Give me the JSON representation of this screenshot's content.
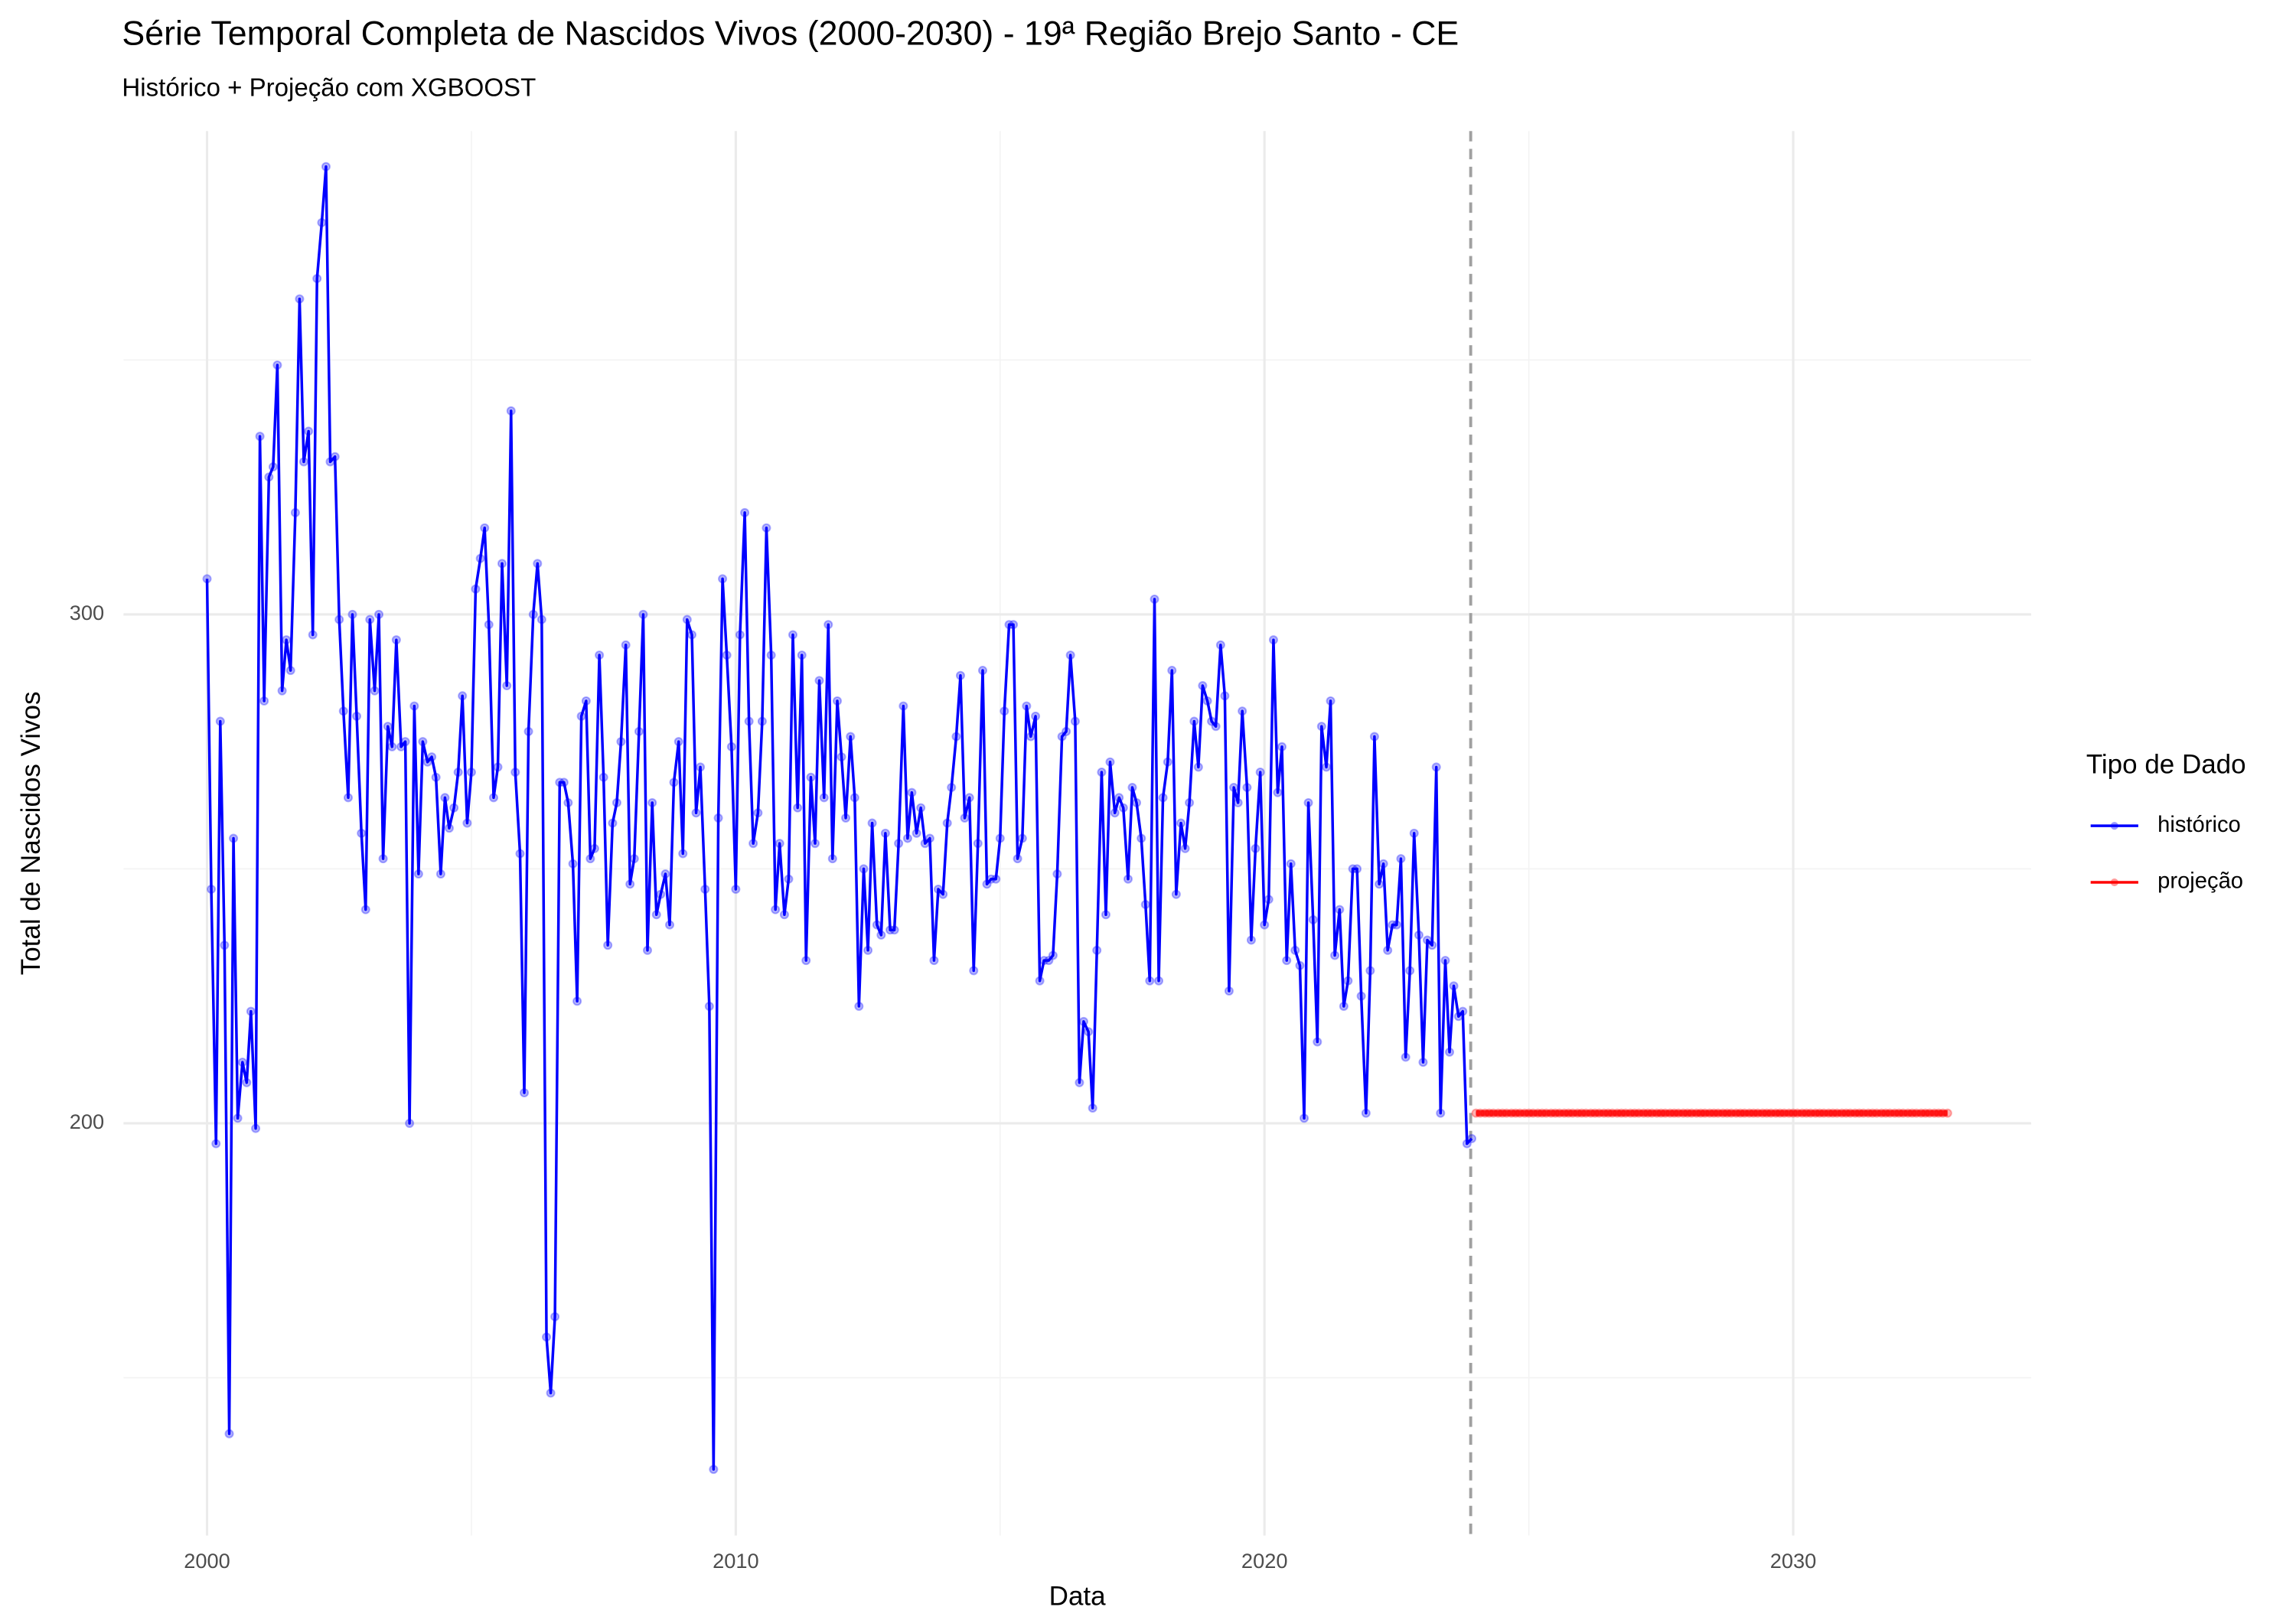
{
  "chart_data": {
    "type": "line",
    "title": "Série Temporal Completa de Nascidos Vivos (2000-2030) -  19ª Região Brejo Santo - CE",
    "subtitle": "Histórico + Projeção com XGBOOST",
    "x_label": "Data",
    "y_label": "Total de Nascidos Vivos",
    "legend_title": "Tipo de Dado",
    "legend_position": "right",
    "grid": true,
    "xlim": [
      1998.42,
      2034.5
    ],
    "xticks": [
      2000,
      2010,
      2020,
      2030
    ],
    "x_minor_ticks": [
      2005,
      2015,
      2025
    ],
    "ylim": [
      119,
      395
    ],
    "yticks": [
      200,
      300
    ],
    "y_minor_ticks": [
      150,
      250,
      350
    ],
    "reference_line_x": 2023.9,
    "series": [
      {
        "name": "histórico",
        "color": "#0000ff",
        "x": [
          2000,
          2000.08,
          2000.17,
          2000.25,
          2000.33,
          2000.42,
          2000.5,
          2000.58,
          2000.67,
          2000.75,
          2000.83,
          2000.92,
          2001,
          2001.08,
          2001.17,
          2001.25,
          2001.33,
          2001.42,
          2001.5,
          2001.58,
          2001.67,
          2001.75,
          2001.83,
          2001.92,
          2002,
          2002.08,
          2002.17,
          2002.25,
          2002.33,
          2002.42,
          2002.5,
          2002.58,
          2002.67,
          2002.75,
          2002.83,
          2002.92,
          2003,
          2003.08,
          2003.17,
          2003.25,
          2003.33,
          2003.42,
          2003.5,
          2003.58,
          2003.67,
          2003.75,
          2003.83,
          2003.92,
          2004,
          2004.08,
          2004.17,
          2004.25,
          2004.33,
          2004.42,
          2004.5,
          2004.58,
          2004.67,
          2004.75,
          2004.83,
          2004.92,
          2005,
          2005.08,
          2005.17,
          2005.25,
          2005.33,
          2005.42,
          2005.5,
          2005.58,
          2005.67,
          2005.75,
          2005.83,
          2005.92,
          2006,
          2006.08,
          2006.17,
          2006.25,
          2006.33,
          2006.42,
          2006.5,
          2006.58,
          2006.67,
          2006.75,
          2006.83,
          2006.92,
          2007,
          2007.08,
          2007.17,
          2007.25,
          2007.33,
          2007.42,
          2007.5,
          2007.58,
          2007.67,
          2007.75,
          2007.83,
          2007.92,
          2008,
          2008.08,
          2008.17,
          2008.25,
          2008.33,
          2008.42,
          2008.5,
          2008.58,
          2008.67,
          2008.75,
          2008.83,
          2008.92,
          2009,
          2009.08,
          2009.17,
          2009.25,
          2009.33,
          2009.42,
          2009.5,
          2009.58,
          2009.67,
          2009.75,
          2009.83,
          2009.92,
          2010,
          2010.08,
          2010.17,
          2010.25,
          2010.33,
          2010.42,
          2010.5,
          2010.58,
          2010.67,
          2010.75,
          2010.83,
          2010.92,
          2011,
          2011.08,
          2011.17,
          2011.25,
          2011.33,
          2011.42,
          2011.5,
          2011.58,
          2011.67,
          2011.75,
          2011.83,
          2011.92,
          2012,
          2012.08,
          2012.17,
          2012.25,
          2012.33,
          2012.42,
          2012.5,
          2012.58,
          2012.67,
          2012.75,
          2012.83,
          2012.92,
          2013,
          2013.08,
          2013.17,
          2013.25,
          2013.33,
          2013.42,
          2013.5,
          2013.58,
          2013.67,
          2013.75,
          2013.83,
          2013.92,
          2014,
          2014.08,
          2014.17,
          2014.25,
          2014.33,
          2014.42,
          2014.5,
          2014.58,
          2014.67,
          2014.75,
          2014.83,
          2014.92,
          2015,
          2015.08,
          2015.17,
          2015.25,
          2015.33,
          2015.42,
          2015.5,
          2015.58,
          2015.67,
          2015.75,
          2015.83,
          2015.92,
          2016,
          2016.08,
          2016.17,
          2016.25,
          2016.33,
          2016.42,
          2016.5,
          2016.58,
          2016.67,
          2016.75,
          2016.83,
          2016.92,
          2017,
          2017.08,
          2017.17,
          2017.25,
          2017.33,
          2017.42,
          2017.5,
          2017.58,
          2017.67,
          2017.75,
          2017.83,
          2017.92,
          2018,
          2018.08,
          2018.17,
          2018.25,
          2018.33,
          2018.42,
          2018.5,
          2018.58,
          2018.67,
          2018.75,
          2018.83,
          2018.92,
          2019,
          2019.08,
          2019.17,
          2019.25,
          2019.33,
          2019.42,
          2019.5,
          2019.58,
          2019.67,
          2019.75,
          2019.83,
          2019.92,
          2020,
          2020.08,
          2020.17,
          2020.25,
          2020.33,
          2020.42,
          2020.5,
          2020.58,
          2020.67,
          2020.75,
          2020.83,
          2020.92,
          2021,
          2021.08,
          2021.17,
          2021.25,
          2021.33,
          2021.42,
          2021.5,
          2021.58,
          2021.67,
          2021.75,
          2021.83,
          2021.92,
          2022,
          2022.08,
          2022.17,
          2022.25,
          2022.33,
          2022.42,
          2022.5,
          2022.58,
          2022.67,
          2022.75,
          2022.83,
          2022.92,
          2023,
          2023.08,
          2023.17,
          2023.25,
          2023.33,
          2023.42,
          2023.5,
          2023.58,
          2023.67,
          2023.75,
          2023.83,
          2023.92
        ],
        "values": [
          307,
          246,
          196,
          279,
          235,
          139,
          256,
          201,
          212,
          208,
          222,
          199,
          335,
          283,
          327,
          329,
          349,
          285,
          295,
          289,
          320,
          362,
          330,
          336,
          296,
          366,
          377,
          388,
          330,
          331,
          299,
          281,
          264,
          300,
          280,
          257,
          242,
          299,
          285,
          300,
          252,
          278,
          274,
          295,
          274,
          275,
          200,
          282,
          249,
          275,
          271,
          272,
          268,
          249,
          264,
          258,
          262,
          269,
          284,
          259,
          269,
          305,
          311,
          317,
          298,
          264,
          270,
          310,
          286,
          340,
          269,
          253,
          206,
          277,
          300,
          310,
          299,
          158,
          147,
          162,
          267,
          267,
          263,
          251,
          224,
          280,
          283,
          252,
          254,
          292,
          268,
          235,
          259,
          263,
          275,
          294,
          247,
          252,
          277,
          300,
          234,
          263,
          241,
          245,
          249,
          239,
          267,
          275,
          253,
          299,
          296,
          261,
          270,
          246,
          223,
          132,
          260,
          307,
          292,
          274,
          246,
          296,
          320,
          279,
          255,
          261,
          279,
          317,
          292,
          242,
          255,
          241,
          248,
          296,
          262,
          292,
          232,
          268,
          255,
          287,
          264,
          298,
          252,
          283,
          272,
          260,
          276,
          264,
          223,
          250,
          234,
          259,
          239,
          237,
          257,
          238,
          238,
          255,
          282,
          256,
          265,
          257,
          262,
          255,
          256,
          232,
          246,
          245,
          259,
          266,
          276,
          288,
          260,
          264,
          230,
          255,
          289,
          247,
          248,
          248,
          256,
          281,
          298,
          298,
          252,
          256,
          282,
          276,
          280,
          228,
          232,
          232,
          233,
          249,
          276,
          277,
          292,
          279,
          208,
          220,
          218,
          203,
          234,
          269,
          241,
          271,
          261,
          264,
          262,
          248,
          266,
          263,
          256,
          243,
          228,
          303,
          228,
          264,
          271,
          289,
          245,
          259,
          254,
          263,
          279,
          270,
          286,
          283,
          279,
          278,
          294,
          284,
          226,
          266,
          263,
          281,
          266,
          236,
          254,
          269,
          239,
          244,
          295,
          265,
          274,
          232,
          251,
          234,
          231,
          201,
          263,
          240,
          216,
          278,
          270,
          283,
          233,
          242,
          223,
          228,
          250,
          250,
          225,
          202,
          230,
          276,
          247,
          251,
          234,
          239,
          239,
          252,
          213,
          230,
          257,
          237,
          212,
          236,
          235,
          270,
          202,
          232,
          214,
          227,
          221,
          222,
          196,
          197
        ]
      },
      {
        "name": "projeção",
        "color": "#ff0000",
        "x": [
          2024,
          2024.08,
          2024.17,
          2024.25,
          2024.33,
          2024.42,
          2024.5,
          2024.58,
          2024.67,
          2024.75,
          2024.83,
          2024.92,
          2025,
          2025.08,
          2025.17,
          2025.25,
          2025.33,
          2025.42,
          2025.5,
          2025.58,
          2025.67,
          2025.75,
          2025.83,
          2025.92,
          2026,
          2026.08,
          2026.17,
          2026.25,
          2026.33,
          2026.42,
          2026.5,
          2026.58,
          2026.67,
          2026.75,
          2026.83,
          2026.92,
          2027,
          2027.08,
          2027.17,
          2027.25,
          2027.33,
          2027.42,
          2027.5,
          2027.58,
          2027.67,
          2027.75,
          2027.83,
          2027.92,
          2028,
          2028.08,
          2028.17,
          2028.25,
          2028.33,
          2028.42,
          2028.5,
          2028.58,
          2028.67,
          2028.75,
          2028.83,
          2028.92,
          2029,
          2029.08,
          2029.17,
          2029.25,
          2029.33,
          2029.42,
          2029.5,
          2029.58,
          2029.67,
          2029.75,
          2029.83,
          2029.92,
          2030,
          2030.08,
          2030.17,
          2030.25,
          2030.33,
          2030.42,
          2030.5,
          2030.58,
          2030.67,
          2030.75,
          2030.83,
          2030.92,
          2031,
          2031.08,
          2031.17,
          2031.25,
          2031.33,
          2031.42,
          2031.5,
          2031.58,
          2031.67,
          2031.75,
          2031.83,
          2031.92,
          2032,
          2032.08,
          2032.17,
          2032.25,
          2032.33,
          2032.42,
          2032.5,
          2032.58,
          2032.67,
          2032.75,
          2032.83,
          2032.92
        ],
        "values": [
          202,
          202,
          202,
          202,
          202,
          202,
          202,
          202,
          202,
          202,
          202,
          202,
          202,
          202,
          202,
          202,
          202,
          202,
          202,
          202,
          202,
          202,
          202,
          202,
          202,
          202,
          202,
          202,
          202,
          202,
          202,
          202,
          202,
          202,
          202,
          202,
          202,
          202,
          202,
          202,
          202,
          202,
          202,
          202,
          202,
          202,
          202,
          202,
          202,
          202,
          202,
          202,
          202,
          202,
          202,
          202,
          202,
          202,
          202,
          202,
          202,
          202,
          202,
          202,
          202,
          202,
          202,
          202,
          202,
          202,
          202,
          202,
          202,
          202,
          202,
          202,
          202,
          202,
          202,
          202,
          202,
          202,
          202,
          202,
          202,
          202,
          202,
          202,
          202,
          202,
          202,
          202,
          202,
          202,
          202,
          202,
          202,
          202,
          202,
          202,
          202,
          202,
          202,
          202,
          202,
          202,
          202,
          202
        ]
      }
    ]
  }
}
